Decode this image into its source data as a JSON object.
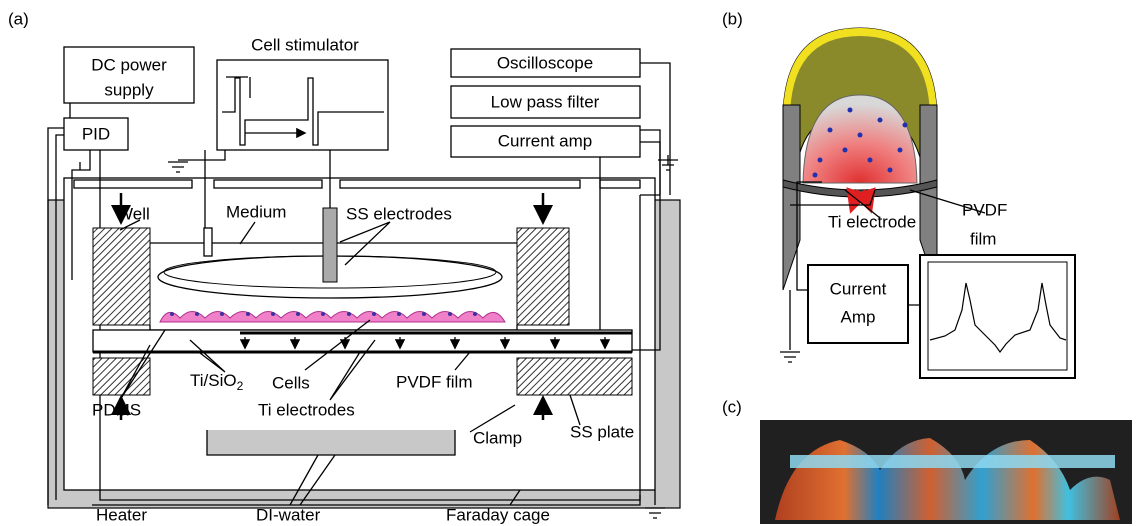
{
  "panels": {
    "a": "(a)",
    "b": "(b)",
    "c": "(c)"
  },
  "panel_a": {
    "dc_power_supply": [
      "DC power",
      "supply"
    ],
    "pid": "PID",
    "cell_stimulator": "Cell stimulator",
    "oscilloscope": "Oscilloscope",
    "low_pass_filter": "Low pass filter",
    "current_amp": "Current amp",
    "well": "Well",
    "medium": "Medium",
    "ss_electrodes": "SS electrodes",
    "ti_sio2": {
      "text": "Ti/SiO",
      "subscript": "2"
    },
    "cells": "Cells",
    "pvdf_film": "PVDF film",
    "pdms": "PDMS",
    "ti_electrodes": "Ti electrodes",
    "clamp": "Clamp",
    "ss_plate": "SS plate",
    "heater": "Heater",
    "di_water": "DI-water",
    "faraday_cage": "Faraday cage"
  },
  "panel_b": {
    "ti_electrode": "Ti electrode",
    "pvdf_film": [
      "PVDF",
      "film"
    ],
    "current_amp": [
      "Current",
      "Amp"
    ]
  }
}
